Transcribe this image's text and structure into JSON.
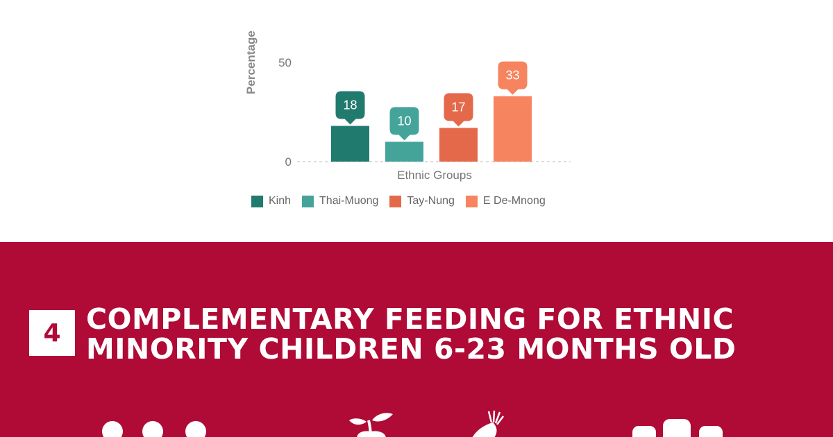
{
  "chart_data": {
    "type": "bar",
    "xlabel": "Ethnic Groups",
    "ylabel": "Percentage",
    "y_ticks": [
      "50",
      "0"
    ],
    "ylim": [
      0,
      50
    ],
    "grid": false,
    "legend_position": "bottom",
    "series": [
      {
        "name": "Kinh",
        "value": 18,
        "color": "#217a6e"
      },
      {
        "name": "Thai-Muong",
        "value": 10,
        "color": "#45a49a"
      },
      {
        "name": "Tay-Nung",
        "value": 17,
        "color": "#e4694a"
      },
      {
        "name": "E De-Mnong",
        "value": 33,
        "color": "#f6845f"
      }
    ]
  },
  "banner": {
    "section_number": "4",
    "title_line1": "COMPLEMENTARY FEEDING FOR ETHNIC",
    "title_line2": "MINORITY CHILDREN 6-23 MONTHS OLD",
    "background_color": "#b00a36",
    "icons": [
      "people-icon",
      "apple-icon",
      "vegetable-icon",
      "bottles-icon"
    ]
  }
}
